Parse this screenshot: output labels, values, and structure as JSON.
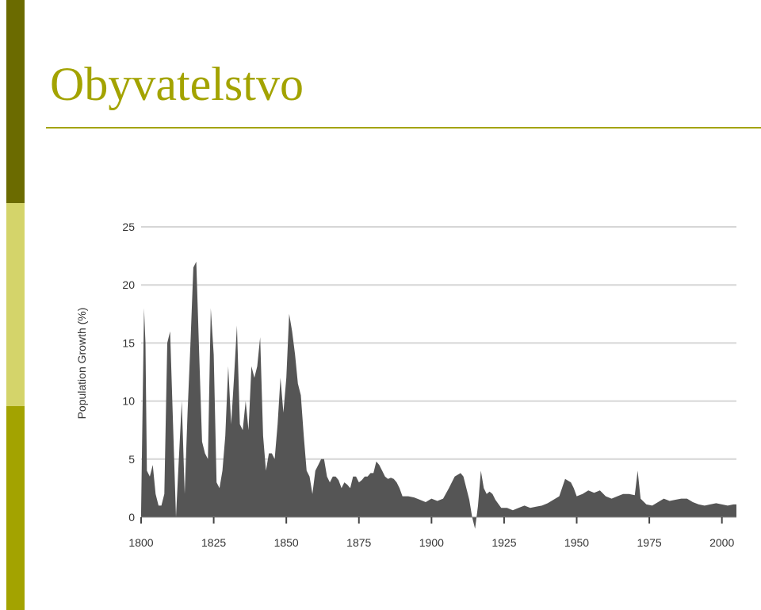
{
  "slide": {
    "title": "Obyvatelstvo",
    "accent_dark": "#6b6b00",
    "accent_light": "#d4d46a",
    "accent_mid": "#a3a300"
  },
  "chart_data": {
    "type": "area",
    "title": "",
    "xlabel": "",
    "ylabel": "Population Growth (%)",
    "xlim": [
      1800,
      2005
    ],
    "ylim": [
      0,
      25
    ],
    "x_ticks": [
      "1800",
      "1825",
      "1850",
      "1875",
      "1900",
      "1925",
      "1950",
      "1975",
      "2000"
    ],
    "y_ticks": [
      "0",
      "5",
      "10",
      "15",
      "20",
      "25"
    ],
    "grid": true,
    "fill_color": "#555555",
    "series": [
      {
        "x": [
          1800,
          1801,
          1801.5,
          1802,
          1803,
          1804,
          1805,
          1806,
          1807,
          1808,
          1809,
          1810,
          1811,
          1812,
          1813,
          1814,
          1815,
          1816,
          1817,
          1818,
          1819,
          1820,
          1821,
          1822,
          1823,
          1824,
          1825,
          1826,
          1827,
          1828,
          1829,
          1830,
          1831,
          1832,
          1833,
          1834,
          1835,
          1836,
          1837,
          1838,
          1839,
          1840,
          1841,
          1842,
          1843,
          1844,
          1845,
          1846,
          1847,
          1848,
          1849,
          1850,
          1851,
          1852,
          1853,
          1854,
          1855,
          1856,
          1857,
          1858,
          1859,
          1860,
          1861,
          1862,
          1863,
          1864,
          1865,
          1866,
          1867,
          1868,
          1869,
          1870,
          1871,
          1872,
          1873,
          1874,
          1875,
          1876,
          1877,
          1878,
          1879,
          1880,
          1881,
          1882,
          1883,
          1884,
          1885,
          1886,
          1887,
          1888,
          1889,
          1890,
          1892,
          1894,
          1896,
          1898,
          1900,
          1902,
          1904,
          1906,
          1908,
          1910,
          1911,
          1912,
          1913,
          1914,
          1915,
          1916,
          1917,
          1918,
          1919,
          1920,
          1921,
          1922,
          1924,
          1926,
          1928,
          1930,
          1932,
          1934,
          1936,
          1938,
          1940,
          1942,
          1944,
          1946,
          1948,
          1949,
          1950,
          1952,
          1954,
          1956,
          1958,
          1960,
          1962,
          1964,
          1966,
          1968,
          1970,
          1971,
          1972,
          1974,
          1976,
          1978,
          1980,
          1982,
          1984,
          1986,
          1988,
          1990,
          1992,
          1994,
          1996,
          1998,
          2000,
          2002,
          2004,
          2005
        ],
        "values": [
          0.5,
          18,
          15,
          4,
          3.5,
          4.5,
          2,
          1,
          1,
          2,
          15,
          16,
          8,
          0,
          5,
          10,
          2,
          9,
          15,
          21.5,
          22,
          14,
          6.5,
          5.5,
          5,
          18,
          14,
          3,
          2.5,
          4,
          7,
          13,
          8,
          12,
          16.5,
          8,
          7.5,
          10,
          7.5,
          13,
          12,
          13,
          15.5,
          7,
          4,
          5.5,
          5.5,
          5,
          8,
          12,
          9,
          12,
          17.5,
          16,
          14,
          11.5,
          10.5,
          7,
          4,
          3.5,
          2,
          4,
          4.5,
          5,
          5,
          3.5,
          3,
          3.5,
          3.5,
          3.2,
          2.5,
          3,
          2.8,
          2.5,
          3.5,
          3.5,
          3,
          3.2,
          3.5,
          3.5,
          3.8,
          3.8,
          4.8,
          4.5,
          4,
          3.5,
          3.3,
          3.4,
          3.3,
          3,
          2.5,
          1.8,
          1.8,
          1.7,
          1.5,
          1.3,
          1.6,
          1.4,
          1.6,
          2.5,
          3.5,
          3.8,
          3.5,
          2.5,
          1.5,
          0,
          -1,
          1,
          4,
          2.5,
          2,
          2.2,
          2,
          1.5,
          0.8,
          0.8,
          0.6,
          0.8,
          1,
          0.8,
          0.9,
          1,
          1.2,
          1.5,
          1.8,
          3.3,
          3,
          2.5,
          1.8,
          2,
          2.3,
          2.1,
          2.3,
          1.8,
          1.6,
          1.8,
          2,
          2,
          1.9,
          4,
          1.6,
          1.1,
          1,
          1.3,
          1.6,
          1.4,
          1.5,
          1.6,
          1.6,
          1.3,
          1.1,
          1,
          1.1,
          1.2,
          1.1,
          1,
          1.1,
          1.1
        ]
      }
    ]
  }
}
